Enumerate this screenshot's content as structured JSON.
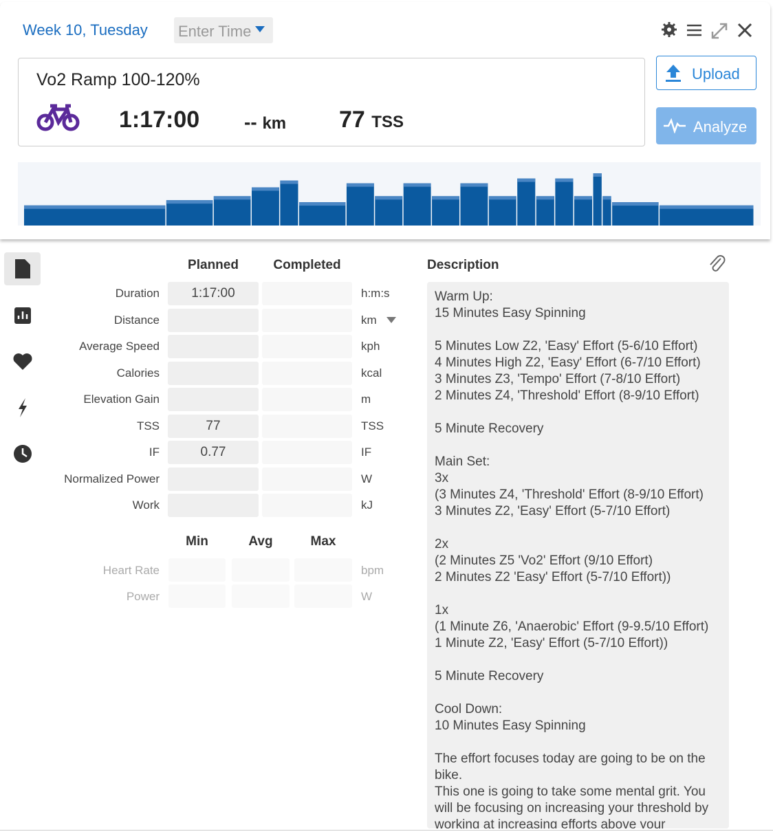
{
  "header": {
    "title": "Week 10, Tuesday",
    "time_placeholder": "Enter Time"
  },
  "summary": {
    "name": "Vo2 Ramp 100-120%",
    "duration": "1:17:00",
    "distance": "--",
    "distance_unit": "km",
    "tss": 77,
    "tss_unit": "TSS"
  },
  "buttons": {
    "upload": "Upload",
    "analyze": "Analyze"
  },
  "workout_profile": {
    "segments": [
      {
        "minutes": 15,
        "intensity": 50
      },
      {
        "minutes": 5,
        "intensity": 63
      },
      {
        "minutes": 4,
        "intensity": 73
      },
      {
        "minutes": 3,
        "intensity": 95
      },
      {
        "minutes": 2,
        "intensity": 112
      },
      {
        "minutes": 5,
        "intensity": 58
      },
      {
        "minutes": 3,
        "intensity": 105
      },
      {
        "minutes": 3,
        "intensity": 73
      },
      {
        "minutes": 3,
        "intensity": 105
      },
      {
        "minutes": 3,
        "intensity": 73
      },
      {
        "minutes": 3,
        "intensity": 105
      },
      {
        "minutes": 3,
        "intensity": 73
      },
      {
        "minutes": 2,
        "intensity": 117
      },
      {
        "minutes": 2,
        "intensity": 73
      },
      {
        "minutes": 2,
        "intensity": 117
      },
      {
        "minutes": 2,
        "intensity": 73
      },
      {
        "minutes": 1,
        "intensity": 130
      },
      {
        "minutes": 1,
        "intensity": 73
      },
      {
        "minutes": 5,
        "intensity": 58
      },
      {
        "minutes": 10,
        "intensity": 50
      }
    ]
  },
  "metrics": {
    "headers": [
      "Planned",
      "Completed"
    ],
    "rows": [
      {
        "label": "Duration",
        "planned": "1:17:00",
        "unit": "h:m:s"
      },
      {
        "label": "Distance",
        "unit": "km"
      },
      {
        "label": "Average Speed",
        "unit": "kph"
      },
      {
        "label": "Calories",
        "unit": "kcal"
      },
      {
        "label": "Elevation Gain",
        "unit": "m"
      },
      {
        "label": "TSS",
        "planned": 77,
        "unit": "TSS"
      },
      {
        "label": "IF",
        "planned": 0.77,
        "unit": "IF"
      },
      {
        "label": "Normalized Power",
        "unit": "W"
      },
      {
        "label": "Work",
        "unit": "kJ"
      }
    ]
  },
  "range_metrics": {
    "headers": [
      "Min",
      "Avg",
      "Max"
    ],
    "rows": [
      {
        "label": "Heart Rate",
        "unit": "bpm"
      },
      {
        "label": "Power",
        "unit": "W"
      }
    ]
  },
  "description": {
    "title": "Description",
    "paragraphs": [
      [
        "Warm Up:",
        "15 Minutes Easy Spinning"
      ],
      [
        "5 Minutes Low Z2, 'Easy' Effort (5-6/10 Effort)",
        "4 Minutes High Z2, 'Easy' Effort (6-7/10 Effort)",
        "3 Minutes Z3, 'Tempo' Effort (7-8/10 Effort)",
        "2 Minutes Z4, 'Threshold' Effort (8-9/10 Effort)"
      ],
      [
        "5 Minute Recovery"
      ],
      [
        "Main Set:",
        "3x",
        "(3 Minutes Z4, 'Threshold' Effort (8-9/10 Effort)",
        "3 Minutes Z2, 'Easy' Effort (5-7/10 Effort)"
      ],
      [
        "2x",
        "(2 Minutes  Z5 'Vo2' Effort (9/10 Effort)",
        "2 Minutes Z2 'Easy' Effort (5-7/10 Effort))"
      ],
      [
        "1x",
        "(1 Minute Z6, 'Anaerobic' Effort (9-9.5/10 Effort)",
        "1 Minute Z2, 'Easy' Effort (5-7/10 Effort))"
      ],
      [
        "5 Minute Recovery"
      ],
      [
        "Cool Down:",
        "10 Minutes Easy Spinning"
      ],
      [
        "The effort focuses today are going to be on the bike.",
        "This one is going to take some mental grit. You will be focusing on increasing your threshold by working at increasing efforts above your"
      ]
    ]
  }
}
